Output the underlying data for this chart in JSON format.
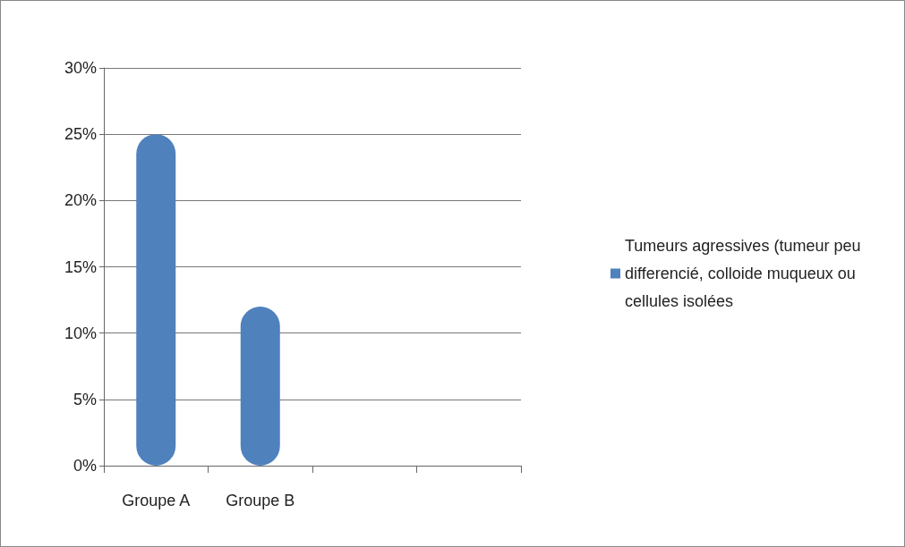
{
  "chart_data": {
    "type": "bar",
    "categories": [
      "Groupe A",
      "Groupe B",
      null,
      null
    ],
    "series": [
      {
        "name": "Tumeurs agressives (tumeur peu differencié, colloide muqueux ou cellules isolées",
        "color": "#4f81bd",
        "values": [
          25,
          12,
          null,
          null
        ]
      }
    ],
    "ylim": [
      0,
      30
    ],
    "yticks": [
      {
        "value": 0,
        "label": "0%"
      },
      {
        "value": 5,
        "label": "5%"
      },
      {
        "value": 10,
        "label": "10%"
      },
      {
        "value": 15,
        "label": "15%"
      },
      {
        "value": 20,
        "label": "20%"
      },
      {
        "value": 25,
        "label": "25%"
      },
      {
        "value": 30,
        "label": "30%"
      }
    ],
    "grid": true,
    "legend": "right"
  }
}
